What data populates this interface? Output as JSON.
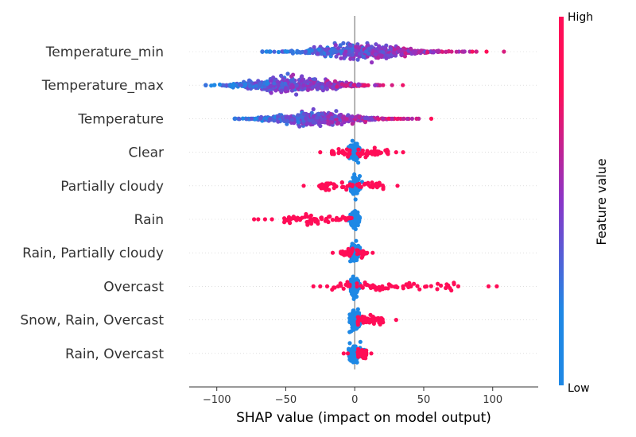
{
  "chart_data": {
    "type": "scatter",
    "subtype": "shap-beeswarm",
    "xlabel": "SHAP value (impact on model output)",
    "xlim": [
      -120,
      133
    ],
    "xticks": [
      -100,
      -50,
      0,
      50,
      100
    ],
    "xtick_labels": [
      "−100",
      "−50",
      "0",
      "50",
      "100"
    ],
    "grid": false,
    "colors": {
      "low": "#1e88e5",
      "mid": "#8a35c8",
      "high": "#ff0d57",
      "zero_line": "#999999",
      "row_guide": "#cccccc"
    },
    "colorbar": {
      "title": "Feature value",
      "high_label": "High",
      "low_label": "Low",
      "placement": "right"
    },
    "features": [
      {
        "name": "Temperature_min",
        "min": -67,
        "max": 120,
        "outliers": [
          -67,
          -63,
          107,
          117,
          120
        ],
        "gradient": true,
        "high_side": "right"
      },
      {
        "name": "Temperature_max",
        "min": -108,
        "max": 60,
        "outliers": [
          -108,
          -87,
          55,
          60
        ],
        "gradient": true,
        "high_side": "right"
      },
      {
        "name": "Temperature",
        "min": -87,
        "max": 69,
        "outliers": [
          -87,
          -80,
          60,
          69
        ],
        "gradient": true,
        "high_side": "right"
      },
      {
        "name": "Clear",
        "min": -25,
        "max": 35,
        "outliers": [
          -25,
          30,
          35
        ],
        "gradient": false,
        "high_side": "both"
      },
      {
        "name": "Partially cloudy",
        "min": -37,
        "max": 31,
        "outliers": [
          -37,
          -23,
          31
        ],
        "gradient": false,
        "high_side": "both"
      },
      {
        "name": "Rain",
        "min": -73,
        "max": 5,
        "outliers": [
          -73,
          -70,
          -65,
          -60,
          -48
        ],
        "gradient": false,
        "high_side": "left"
      },
      {
        "name": "Rain, Partially cloudy",
        "min": -16,
        "max": 13,
        "outliers": [
          -16,
          -10,
          9,
          13
        ],
        "gradient": false,
        "high_side": "both"
      },
      {
        "name": "Overcast",
        "min": -30,
        "max": 103,
        "outliers": [
          -30,
          -25,
          -20,
          -12,
          20,
          30,
          35,
          75,
          97,
          103
        ],
        "gradient": false,
        "high_side": "both"
      },
      {
        "name": "Snow, Rain, Overcast",
        "min": 0,
        "max": 30,
        "outliers": [
          11,
          30
        ],
        "gradient": false,
        "high_side": "right"
      },
      {
        "name": "Rain, Overcast",
        "min": -8,
        "max": 12,
        "outliers": [
          -8,
          -5,
          5,
          12
        ],
        "gradient": false,
        "high_side": "right"
      }
    ]
  }
}
